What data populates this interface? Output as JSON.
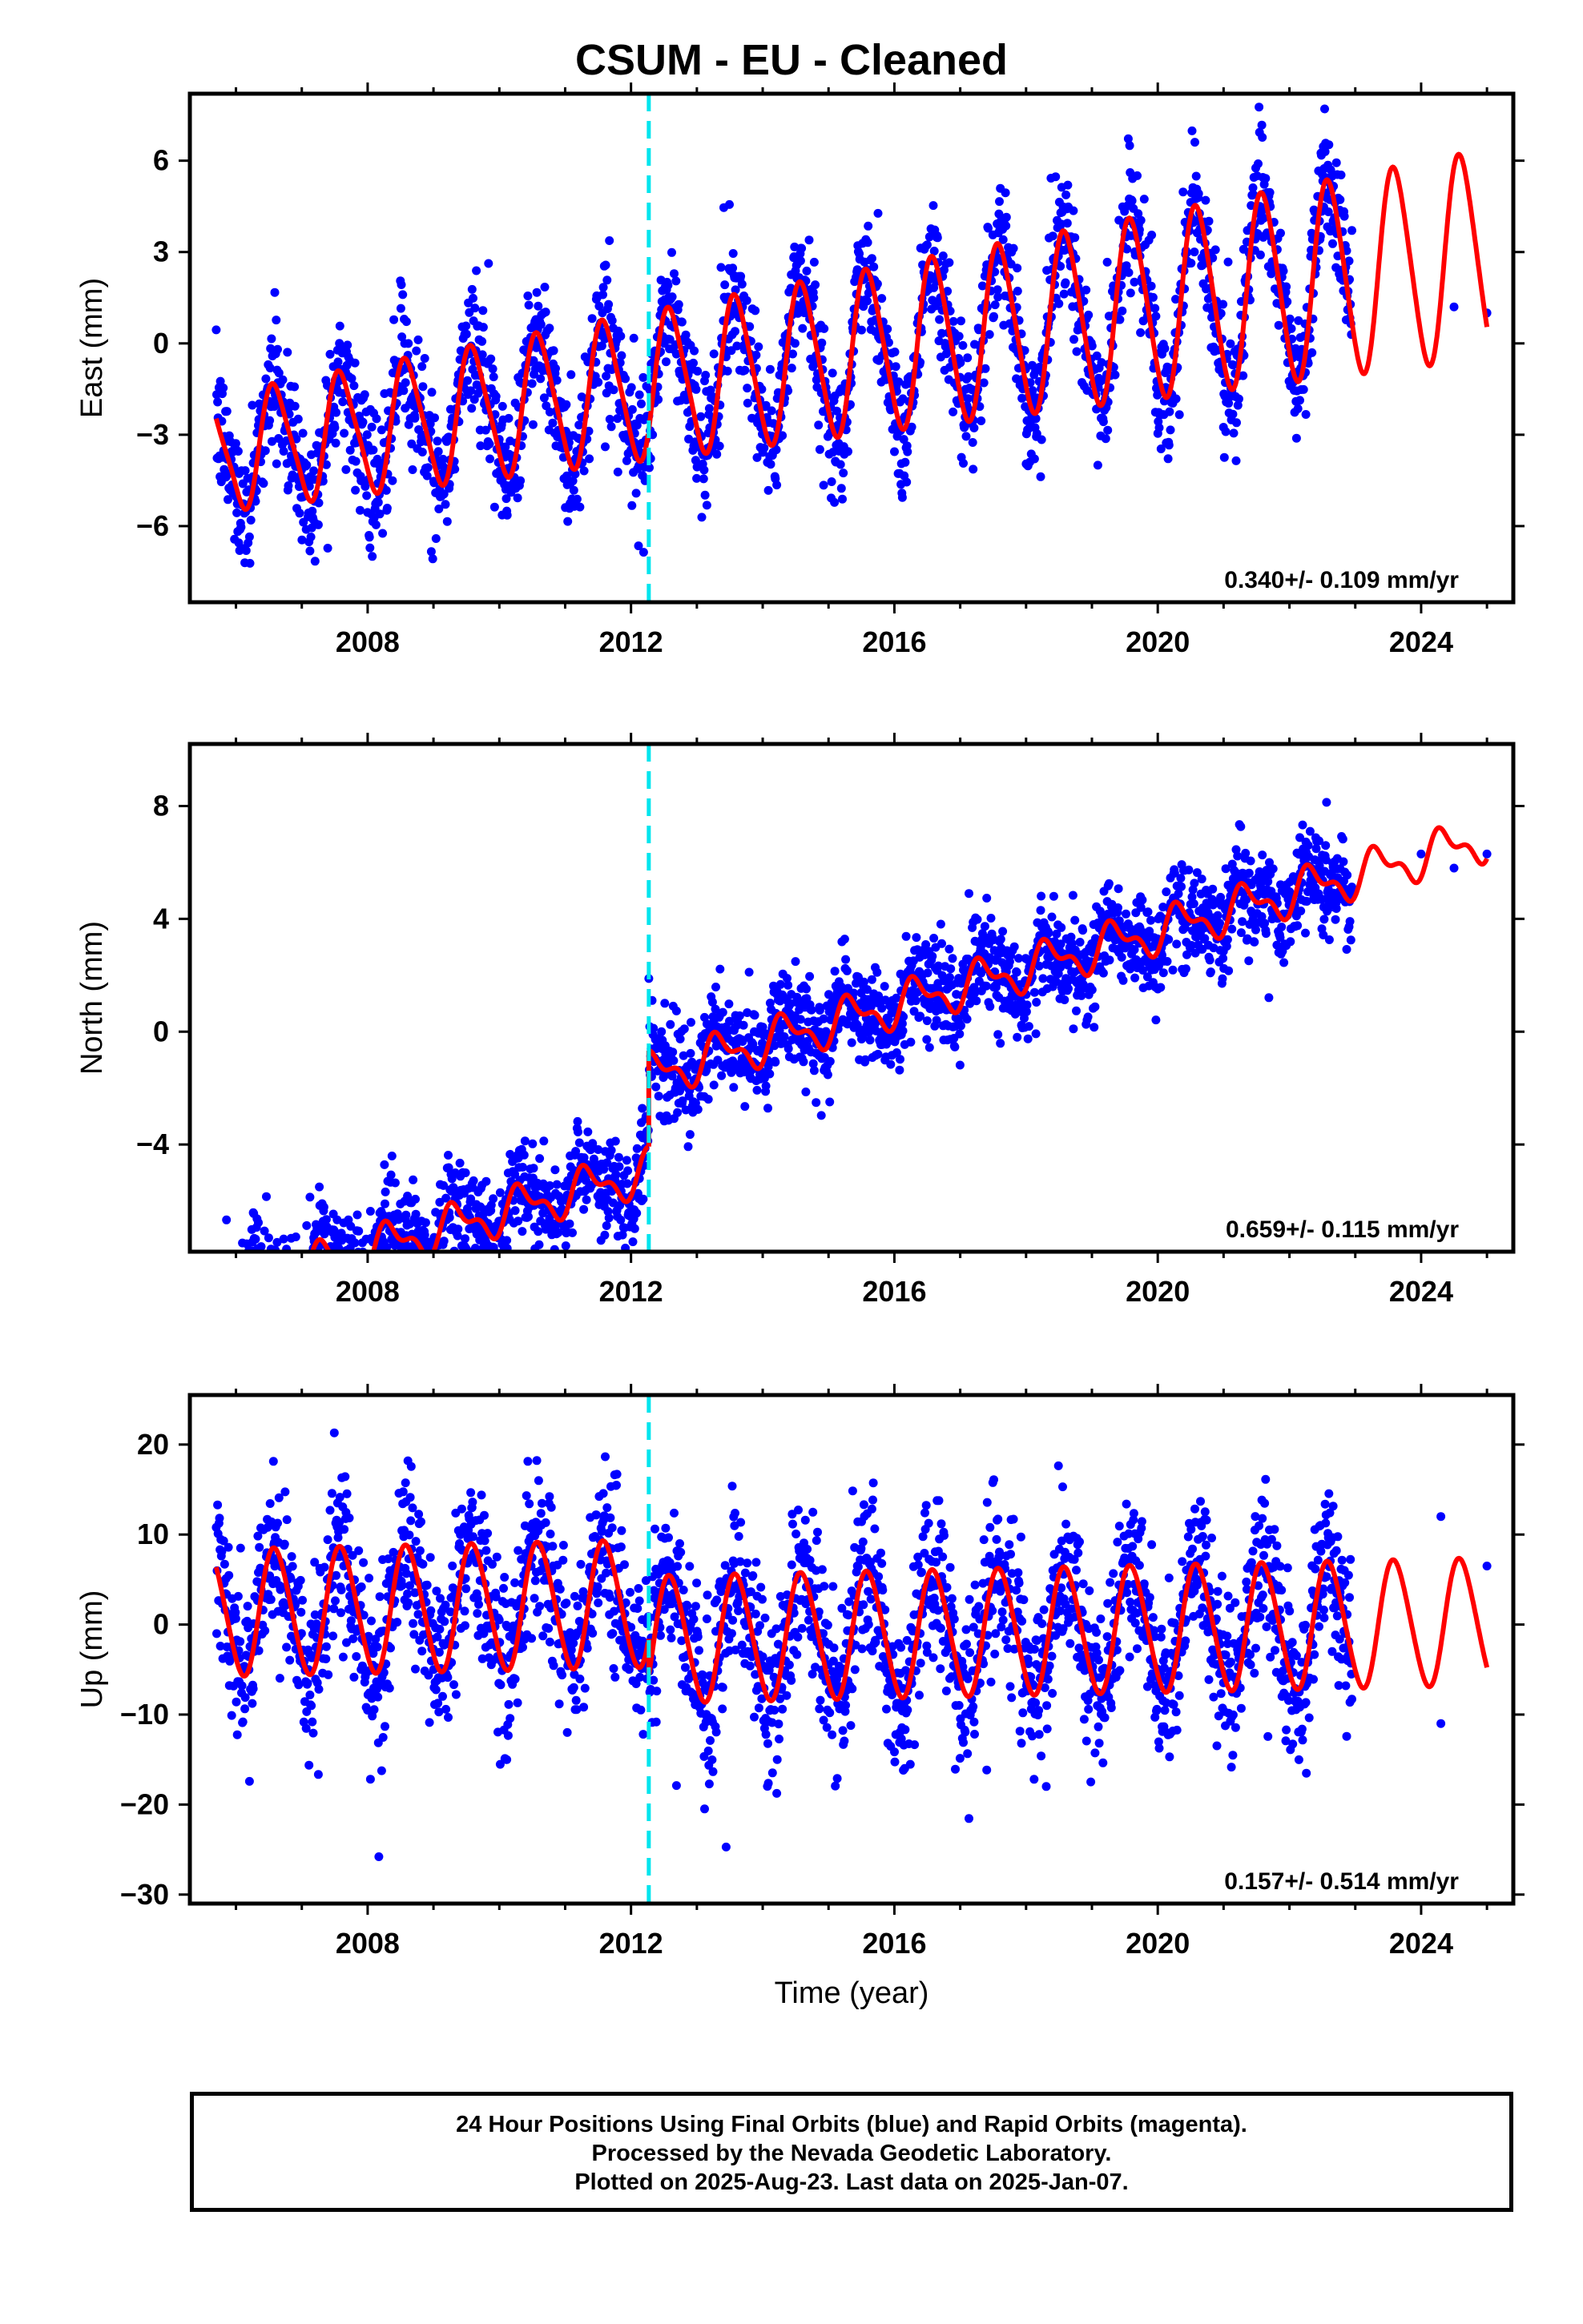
{
  "title": "CSUM  - EU - Cleaned",
  "caption": {
    "line1": "24 Hour Positions Using Final Orbits (blue) and Rapid Orbits (magenta).",
    "line2": "Processed by the Nevada Geodetic Laboratory.",
    "line3": "Plotted on 2025-Aug-23. Last data on 2025-Jan-07."
  },
  "colors": {
    "data_points": "#0000ff",
    "model_fit": "#ff0000",
    "equipment_change": "#00e5ee",
    "axes": "#000000"
  },
  "chart_data": [
    {
      "type": "scatter",
      "ylabel": "East (mm)",
      "xlabel": "",
      "xlim": [
        2005.3,
        2025.4
      ],
      "ylim": [
        -8.5,
        8.2
      ],
      "x_ticks": [
        2008,
        2012,
        2016,
        2020,
        2024
      ],
      "y_ticks": [
        6,
        3,
        0,
        -3,
        -6
      ],
      "grid": false,
      "equipment_change_year": 2012.27,
      "rate_label": "0.340+/- 0.109 mm/yr",
      "data_range": [
        2005.7,
        2022.95
      ],
      "extra_points": [
        [
          2024.5,
          1.2
        ],
        [
          2025.0,
          1.0
        ]
      ],
      "model": {
        "rate": 0.34,
        "intercept": -0.8,
        "annual_amp": 2.5,
        "annual_amp_drift": 0.08,
        "semiannual_amp": 0.35,
        "phase_year": 0.35,
        "offset": 0
      },
      "scatter_sigma": 1.05
    },
    {
      "type": "scatter",
      "ylabel": "North (mm)",
      "xlabel": "",
      "xlim": [
        2005.3,
        2025.4
      ],
      "ylim": [
        -7.8,
        10.2
      ],
      "x_ticks": [
        2008,
        2012,
        2016,
        2020,
        2024
      ],
      "y_ticks": [
        8,
        4,
        0,
        -4
      ],
      "grid": false,
      "equipment_change_year": 2012.27,
      "rate_label": "0.659+/- 0.115 mm/yr",
      "data_range": [
        2005.7,
        2022.95
      ],
      "extra_points": [
        [
          2024.0,
          6.3
        ],
        [
          2024.5,
          5.8
        ],
        [
          2025.0,
          6.3
        ]
      ],
      "model": {
        "rate": 0.659,
        "intercept": -0.4,
        "annual_amp": 0.65,
        "annual_amp_drift": 0.0,
        "semiannual_amp": 0.35,
        "phase_year": 0.1,
        "offset": -3.4
      },
      "scatter_sigma": 0.9
    },
    {
      "type": "scatter",
      "ylabel": "Up (mm)",
      "xlabel": "Time (year)",
      "xlim": [
        2005.3,
        2025.4
      ],
      "ylim": [
        -31,
        25.5
      ],
      "x_ticks": [
        2008,
        2012,
        2016,
        2020,
        2024
      ],
      "y_ticks": [
        20,
        10,
        0,
        -10,
        -20,
        -30
      ],
      "grid": false,
      "equipment_change_year": 2012.27,
      "rate_label": "0.157+/- 0.514 mm/yr",
      "data_range": [
        2005.7,
        2022.95
      ],
      "extra_points": [
        [
          2024.3,
          12.0
        ],
        [
          2024.3,
          -11.0
        ],
        [
          2025.0,
          6.5
        ]
      ],
      "model": {
        "rate": 0.157,
        "intercept": -1.4,
        "annual_amp": 7.0,
        "annual_amp_drift": 0.0,
        "semiannual_amp": 0.6,
        "phase_year": 0.35,
        "offset": 4.0
      },
      "scatter_sigma": 4.6
    }
  ]
}
